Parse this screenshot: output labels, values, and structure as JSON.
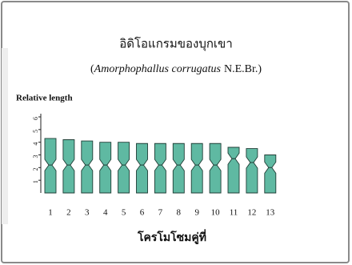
{
  "chart_data": {
    "type": "idiogram",
    "title": "อิดิโอแกรมของบุกเขา",
    "subtitle": [
      "(",
      "Amorphophallus corrugatus",
      "N.E.Br.)"
    ],
    "y_label": "Relative length",
    "x_label": "โครโมโซมคู่ที่",
    "categories": [
      "1",
      "2",
      "3",
      "4",
      "5",
      "6",
      "7",
      "8",
      "9",
      "10",
      "11",
      "12",
      "13"
    ],
    "values": [
      4.3,
      4.2,
      4.1,
      4.0,
      4.0,
      3.9,
      3.9,
      3.9,
      3.9,
      3.9,
      3.6,
      3.5,
      3.0
    ],
    "centromere": [
      2.2,
      2.2,
      2.2,
      2.2,
      2.2,
      2.2,
      2.2,
      2.2,
      2.2,
      2.2,
      2.7,
      2.4,
      2.0
    ],
    "color": "#5fb9a2",
    "ylim": [
      0,
      6
    ],
    "yticks": [
      1,
      2,
      3,
      4,
      5,
      6
    ]
  }
}
